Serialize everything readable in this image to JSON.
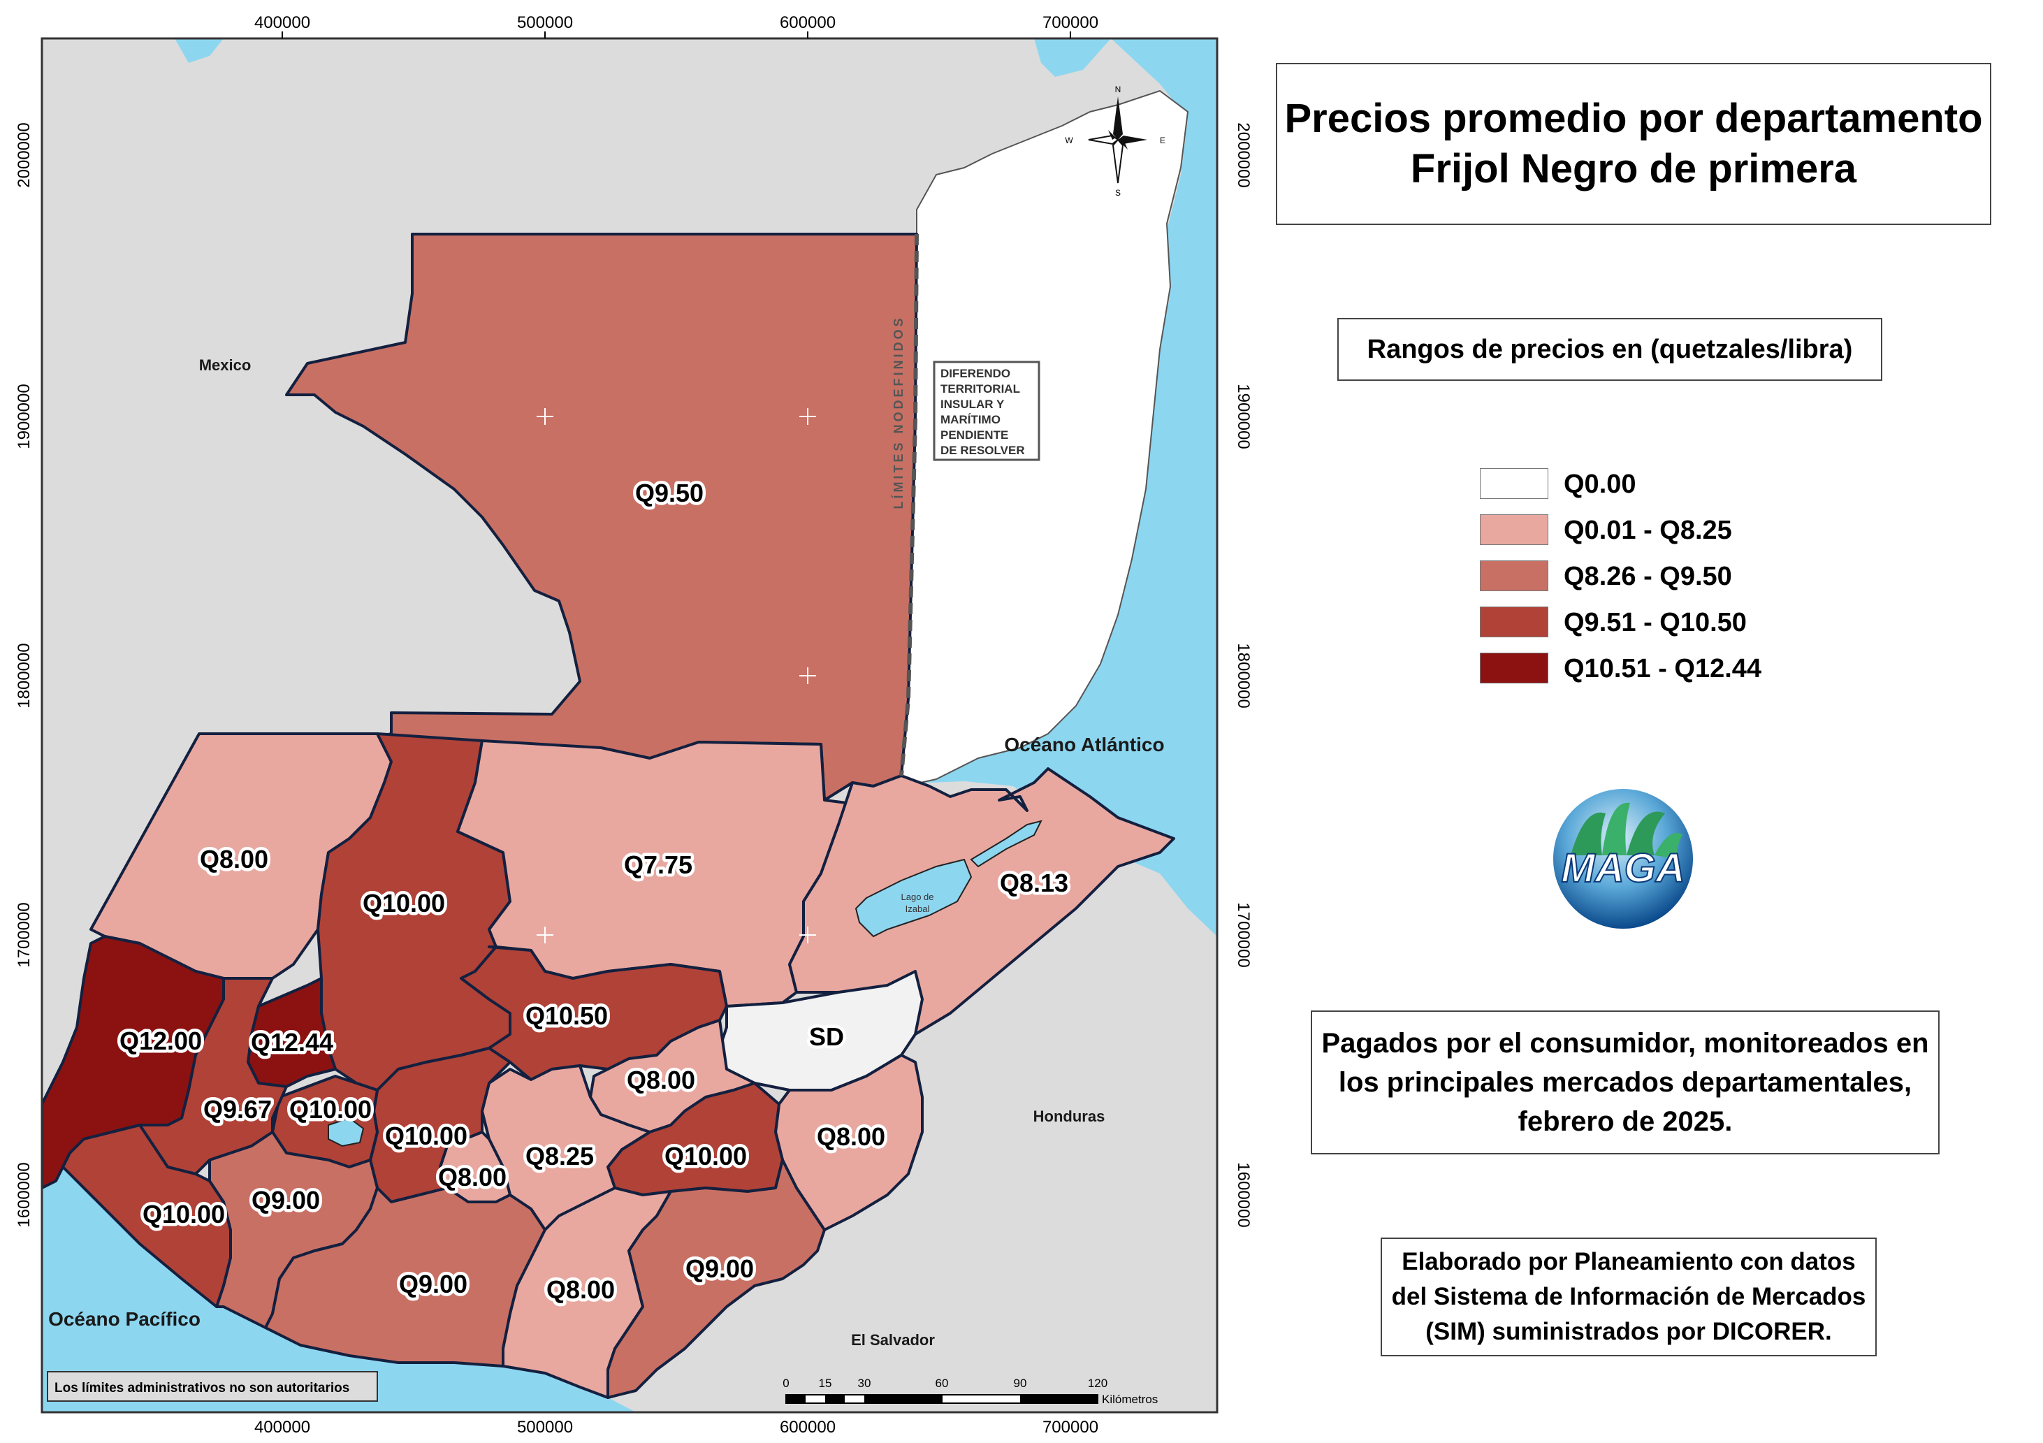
{
  "title": {
    "line1": "Precios promedio por departamento",
    "line2": "Frijol Negro de primera"
  },
  "range_title": "Rangos de precios en (quetzales/libra)",
  "legend": [
    {
      "label": "Q0.00",
      "color": "#ffffff"
    },
    {
      "label": "Q0.01 - Q8.25",
      "color": "#e8a8a0"
    },
    {
      "label": "Q8.26 - Q9.50",
      "color": "#c97064"
    },
    {
      "label": "Q9.51 - Q10.50",
      "color": "#b04238"
    },
    {
      "label": "Q10.51 - Q12.44",
      "color": "#8c1212"
    }
  ],
  "consumer_note": {
    "line1": "Pagados por el consumidor, monitoreados en",
    "line2": "los principales mercados departamentales,",
    "line3": "febrero de 2025."
  },
  "credits": {
    "line1": "Elaborado por Planeamiento con datos",
    "line2": "del Sistema de Información de Mercados",
    "line3": "(SIM) suministrados por DICORER."
  },
  "logo_text": "MAGA",
  "map": {
    "x_ticks": [
      "400000",
      "500000",
      "600000",
      "700000"
    ],
    "y_ticks": [
      "2000000",
      "1900000",
      "1800000",
      "1700000",
      "1600000"
    ],
    "countries": {
      "mexico": "Mexico",
      "honduras": "Honduras",
      "el_salvador": "El Salvador"
    },
    "oceans": {
      "atlantic": "Océano Atlántico",
      "pacific": "Océano Pacífico"
    },
    "lake": {
      "line1": "Lago de",
      "line2": "Izabal"
    },
    "limites_label": "LÍMITES NODEFINIDOS",
    "diferendo": [
      "DIFERENDO",
      "TERRITORIAL",
      "INSULAR Y",
      "MARÍTIMO",
      "PENDIENTE",
      "DE RESOLVER"
    ],
    "disclaimer": "Los límites administrativos no son autoritarios",
    "compass": {
      "n": "N",
      "s": "S",
      "e": "E",
      "w": "W"
    },
    "scale": {
      "labels": [
        "0",
        "15",
        "30",
        "60",
        "90",
        "120"
      ],
      "unit": "Kilómetros"
    },
    "departments": [
      {
        "id": "peten",
        "price": "Q9.50",
        "class": "Q8.26 - Q9.50"
      },
      {
        "id": "huehuetenango",
        "price": "Q8.00",
        "class": "Q0.01 - Q8.25"
      },
      {
        "id": "quiche",
        "price": "Q10.00",
        "class": "Q9.51 - Q10.50"
      },
      {
        "id": "alta-verapaz",
        "price": "Q7.75",
        "class": "Q0.01 - Q8.25"
      },
      {
        "id": "izabal",
        "price": "Q8.13",
        "class": "Q0.01 - Q8.25"
      },
      {
        "id": "baja-verapaz",
        "price": "Q10.50",
        "class": "Q9.51 - Q10.50"
      },
      {
        "id": "el-progreso",
        "price": "Q8.00",
        "class": "Q0.01 - Q8.25"
      },
      {
        "id": "zacapa",
        "price": "SD",
        "class": "Q0.00"
      },
      {
        "id": "san-marcos",
        "price": "Q12.00",
        "class": "Q10.51 - Q12.44"
      },
      {
        "id": "totonicapan",
        "price": "Q12.44",
        "class": "Q10.51 - Q12.44"
      },
      {
        "id": "quetzaltenango",
        "price": "Q9.67",
        "class": "Q9.51 - Q10.50"
      },
      {
        "id": "solola",
        "price": "Q10.00",
        "class": "Q9.51 - Q10.50"
      },
      {
        "id": "chimaltenango",
        "price": "Q10.00",
        "class": "Q9.51 - Q10.50"
      },
      {
        "id": "sacatepequez",
        "price": "Q8.00",
        "class": "Q0.01 - Q8.25"
      },
      {
        "id": "guatemala",
        "price": "Q8.25",
        "class": "Q0.01 - Q8.25"
      },
      {
        "id": "jalapa",
        "price": "Q10.00",
        "class": "Q9.51 - Q10.50"
      },
      {
        "id": "chiquimula",
        "price": "Q8.00",
        "class": "Q0.01 - Q8.25"
      },
      {
        "id": "retalhuleu",
        "price": "Q10.00",
        "class": "Q9.51 - Q10.50"
      },
      {
        "id": "suchitepequez",
        "price": "Q9.00",
        "class": "Q8.26 - Q9.50"
      },
      {
        "id": "escuintla",
        "price": "Q9.00",
        "class": "Q8.26 - Q9.50"
      },
      {
        "id": "santa-rosa",
        "price": "Q8.00",
        "class": "Q0.01 - Q8.25"
      },
      {
        "id": "jutiapa",
        "price": "Q9.00",
        "class": "Q8.26 - Q9.50"
      }
    ]
  }
}
